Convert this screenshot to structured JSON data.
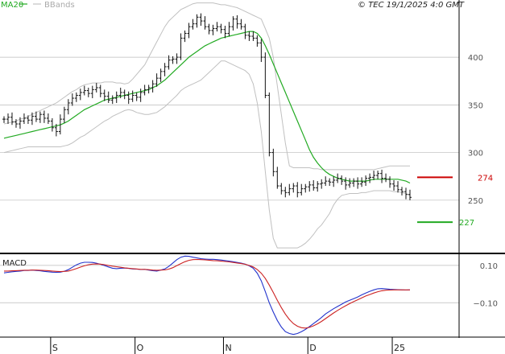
{
  "header": {
    "legend_ma": "MA20",
    "legend_bb": "BBands",
    "copyright": "© TEC 19/1/2025 4:0 GMT"
  },
  "colors": {
    "ma": "#22aa22",
    "bands": "#c0c0c0",
    "candles": "#111111",
    "macd": "#2233cc",
    "signal": "#cc2222",
    "resistance": "#cc0000",
    "support": "#22aa22",
    "grid": "#bbbbbb"
  },
  "chart_data": [
    {
      "type": "candlestick",
      "title": "",
      "y_ticks": [
        250,
        300,
        350,
        400
      ],
      "ylim": [
        195,
        460
      ],
      "x_labels": [
        "S",
        "O",
        "N",
        "D",
        "25"
      ],
      "x_label_index": [
        12,
        33,
        55,
        76,
        97
      ],
      "levels": [
        {
          "label": "274",
          "value": 274,
          "kind": "resistance"
        },
        {
          "label": "227",
          "value": 227,
          "kind": "support"
        }
      ],
      "close": [
        335,
        337,
        332,
        330,
        333,
        336,
        334,
        338,
        335,
        340,
        336,
        333,
        326,
        322,
        335,
        345,
        352,
        357,
        360,
        363,
        365,
        362,
        366,
        368,
        362,
        359,
        355,
        357,
        360,
        363,
        360,
        356,
        360,
        358,
        363,
        366,
        368,
        372,
        378,
        385,
        390,
        397,
        398,
        400,
        420,
        425,
        432,
        435,
        442,
        438,
        432,
        428,
        430,
        432,
        429,
        425,
        432,
        440,
        435,
        432,
        423,
        422,
        420,
        415,
        400,
        360,
        300,
        280,
        265,
        260,
        258,
        262,
        265,
        258,
        262,
        264,
        266,
        263,
        267,
        268,
        270,
        269,
        271,
        273,
        270,
        266,
        268,
        270,
        267,
        269,
        273,
        274,
        276,
        278,
        273,
        272,
        267,
        265,
        261,
        259,
        256,
        253
      ],
      "ma20": [
        315,
        316,
        317,
        318,
        319,
        320,
        321,
        322,
        323,
        324,
        325,
        326,
        327,
        328,
        329,
        331,
        333,
        336,
        339,
        342,
        345,
        347,
        349,
        351,
        353,
        355,
        356,
        357,
        358,
        359,
        360,
        361,
        362,
        363,
        364,
        365,
        366,
        368,
        370,
        373,
        376,
        380,
        384,
        388,
        392,
        396,
        400,
        403,
        406,
        409,
        412,
        414,
        416,
        418,
        420,
        421,
        422,
        423,
        424,
        425,
        426,
        427,
        427,
        425,
        420,
        412,
        403,
        393,
        383,
        373,
        363,
        353,
        343,
        333,
        323,
        313,
        303,
        295,
        289,
        284,
        280,
        277,
        275,
        273,
        272,
        271,
        270,
        270,
        270,
        270,
        270,
        271,
        272,
        272,
        272,
        272,
        272,
        272,
        272,
        271,
        270,
        268
      ],
      "bb_upper": [
        330,
        331,
        332,
        333,
        335,
        336,
        338,
        340,
        342,
        344,
        346,
        348,
        350,
        352,
        355,
        358,
        361,
        364,
        366,
        369,
        371,
        372,
        373,
        373,
        373,
        374,
        374,
        374,
        373,
        373,
        372,
        373,
        377,
        382,
        387,
        392,
        400,
        408,
        416,
        424,
        432,
        438,
        442,
        446,
        450,
        452,
        454,
        456,
        457,
        457,
        457,
        457,
        457,
        456,
        455,
        455,
        454,
        453,
        452,
        450,
        448,
        446,
        444,
        442,
        440,
        430,
        420,
        400,
        370,
        340,
        310,
        286,
        284,
        284,
        284,
        284,
        284,
        283,
        283,
        282,
        282,
        282,
        282,
        282,
        282,
        282,
        282,
        282,
        282,
        282,
        282,
        282,
        282,
        283,
        284,
        285,
        286,
        286,
        286,
        286,
        286,
        286
      ],
      "bb_lower": [
        300,
        301,
        302,
        303,
        304,
        305,
        306,
        306,
        306,
        306,
        306,
        306,
        306,
        306,
        306,
        307,
        308,
        310,
        313,
        316,
        318,
        321,
        324,
        327,
        330,
        333,
        335,
        338,
        340,
        342,
        344,
        345,
        344,
        342,
        341,
        340,
        340,
        341,
        342,
        345,
        348,
        352,
        356,
        360,
        365,
        368,
        370,
        372,
        374,
        376,
        380,
        384,
        388,
        392,
        396,
        396,
        394,
        392,
        390,
        388,
        386,
        382,
        372,
        352,
        322,
        280,
        240,
        210,
        200,
        200,
        200,
        200,
        200,
        200,
        202,
        205,
        209,
        214,
        220,
        224,
        230,
        236,
        245,
        251,
        255,
        256,
        257,
        257,
        257,
        258,
        258,
        259,
        260,
        260,
        260,
        260,
        260,
        259,
        259,
        258,
        257,
        255
      ]
    },
    {
      "type": "line",
      "title": "MACD",
      "y_ticks": [
        10,
        -10
      ],
      "y_tick_labels": [
        "0.10",
        "−0.10"
      ],
      "ylim": [
        -28,
        16
      ],
      "series": [
        {
          "name": "MACD",
          "role": "macd",
          "values": [
            6,
            6.3,
            6.6,
            6.8,
            7,
            7.3,
            7.3,
            7.5,
            7.3,
            7.1,
            6.8,
            6.6,
            6.4,
            6.3,
            6.4,
            6.9,
            7.7,
            9,
            10.3,
            11.2,
            11.7,
            11.7,
            11.6,
            11.2,
            10.6,
            9.9,
            9.2,
            8.5,
            8.3,
            8.5,
            8.6,
            8.4,
            8.1,
            8,
            7.8,
            7.9,
            7.5,
            7.2,
            7,
            7.5,
            8.1,
            9.5,
            11.3,
            13.1,
            14.4,
            15,
            14.9,
            14.4,
            14,
            13.6,
            13.4,
            13.3,
            13.3,
            13.1,
            12.9,
            12.6,
            12.3,
            12,
            11.6,
            11.2,
            10.7,
            9.8,
            8.5,
            5.8,
            1.7,
            -4,
            -10,
            -15,
            -19.5,
            -23,
            -25.5,
            -26.5,
            -27,
            -26.5,
            -25.5,
            -24.3,
            -22.8,
            -21.2,
            -19.6,
            -17.9,
            -16,
            -14.6,
            -13.2,
            -12,
            -10.8,
            -9.6,
            -8.7,
            -7.8,
            -6.9,
            -5.8,
            -4.8,
            -3.9,
            -3.1,
            -2.5,
            -2.4,
            -2.6,
            -2.8,
            -2.9,
            -3,
            -3.1,
            -3.2,
            -3.1
          ]
        },
        {
          "name": "Signal",
          "role": "signal",
          "values": [
            7,
            7,
            7.1,
            7.2,
            7.3,
            7.4,
            7.4,
            7.5,
            7.5,
            7.4,
            7.3,
            7.2,
            7,
            6.8,
            6.7,
            6.8,
            7,
            7.6,
            8.3,
            9.1,
            9.8,
            10.4,
            10.7,
            10.8,
            10.7,
            10.4,
            10,
            9.6,
            9.3,
            9,
            8.7,
            8.5,
            8.3,
            8.1,
            7.9,
            7.9,
            7.7,
            7.5,
            7.4,
            7.5,
            7.6,
            8,
            8.8,
            9.9,
            11,
            12,
            12.7,
            13.1,
            13.2,
            13.1,
            13,
            12.8,
            12.6,
            12.5,
            12.3,
            12.1,
            11.9,
            11.6,
            11.3,
            11,
            10.6,
            10,
            9.2,
            7.8,
            5.8,
            3,
            -0.5,
            -4.5,
            -8.7,
            -12.6,
            -16.1,
            -19,
            -21.2,
            -22.6,
            -23.4,
            -23.6,
            -23.2,
            -22.4,
            -21.3,
            -20,
            -18.5,
            -17,
            -15.5,
            -14.1,
            -12.8,
            -11.6,
            -10.5,
            -9.4,
            -8.4,
            -7.4,
            -6.4,
            -5.6,
            -4.8,
            -4.1,
            -3.6,
            -3.3,
            -3.2,
            -3.1,
            -3.1,
            -3.1,
            -3.1,
            -3.1
          ]
        }
      ]
    }
  ]
}
